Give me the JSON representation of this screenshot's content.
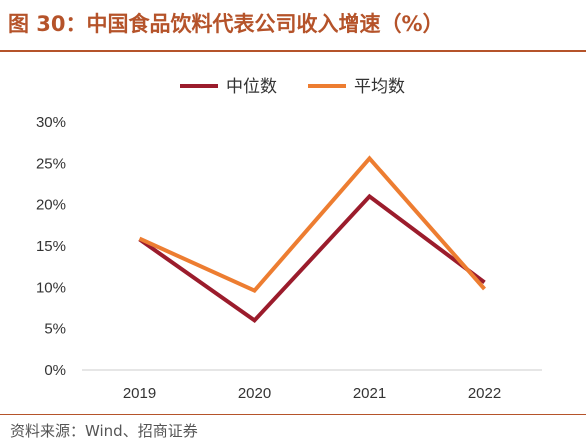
{
  "header": {
    "title": "图 30：中国食品饮料代表公司收入增速（%）"
  },
  "footer": {
    "source": "资料来源：Wind、招商证券"
  },
  "colors": {
    "title": "#b5532a",
    "median": "#9b1c2c",
    "average": "#ed7d31"
  },
  "chart_data": {
    "type": "line",
    "categories": [
      "2019",
      "2020",
      "2021",
      "2022"
    ],
    "series": [
      {
        "name": "中位数",
        "values": [
          15.8,
          6.0,
          21.0,
          10.6
        ]
      },
      {
        "name": "平均数",
        "values": [
          15.9,
          9.6,
          25.6,
          9.8
        ]
      }
    ],
    "yticks": [
      "0%",
      "5%",
      "10%",
      "15%",
      "20%",
      "25%",
      "30%"
    ],
    "ylim": [
      0,
      30
    ],
    "legend": "top-center",
    "grid": false
  }
}
